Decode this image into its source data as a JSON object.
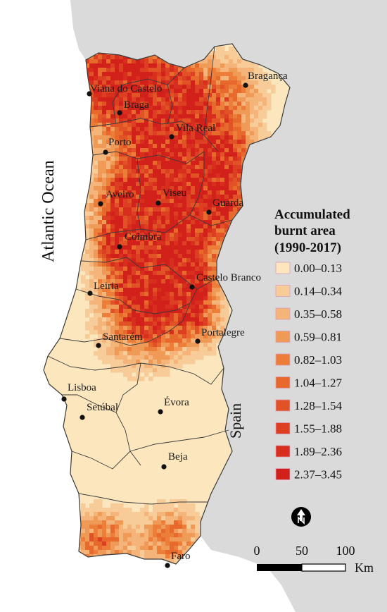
{
  "labels": {
    "ocean": "Atlantic Ocean",
    "country": "Spain"
  },
  "legend": {
    "title_lines": [
      "Accumulated",
      "burnt area",
      "(1990-2017)"
    ],
    "classes": [
      {
        "label": "0.00–0.13",
        "color": "#fbe6bd"
      },
      {
        "label": "0.14–0.34",
        "color": "#f7cc98"
      },
      {
        "label": "0.35–0.58",
        "color": "#f4b47a"
      },
      {
        "label": "0.59–0.81",
        "color": "#f09a58"
      },
      {
        "label": "0.82–1.03",
        "color": "#ec7e3a"
      },
      {
        "label": "1.04–1.27",
        "color": "#e76a2c"
      },
      {
        "label": "1.28–1.54",
        "color": "#e15326"
      },
      {
        "label": "1.55–1.88",
        "color": "#dc3f22"
      },
      {
        "label": "1.89–2.36",
        "color": "#d82e1e"
      },
      {
        "label": "2.37–3.45",
        "color": "#d2201b"
      }
    ]
  },
  "scale_bar": {
    "ticks": [
      "0",
      "50",
      "100"
    ],
    "unit": "Km"
  },
  "cities": [
    {
      "name": "Bragança"
    },
    {
      "name": "Viana do Castelo"
    },
    {
      "name": "Braga"
    },
    {
      "name": "Vila Real"
    },
    {
      "name": "Porto"
    },
    {
      "name": "Aveiro"
    },
    {
      "name": "Viseu"
    },
    {
      "name": "Guarda"
    },
    {
      "name": "Coimbra"
    },
    {
      "name": "Castelo Branco"
    },
    {
      "name": "Leiria"
    },
    {
      "name": "Portalegre"
    },
    {
      "name": "Santarém"
    },
    {
      "name": "Lisboa"
    },
    {
      "name": "Setúbal"
    },
    {
      "name": "Évora"
    },
    {
      "name": "Beja"
    },
    {
      "name": "Faro"
    }
  ],
  "colors": {
    "land_base": "#fbe6bd",
    "ocean": "#ffffff",
    "neighbor": "#dadada",
    "boundary": "#3a3a3a",
    "water": "#bcd3e6"
  }
}
